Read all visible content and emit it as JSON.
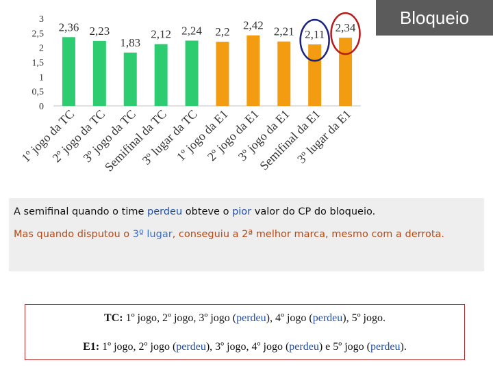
{
  "title": "Bloqueio",
  "chart_data": {
    "type": "bar",
    "categories": [
      "1º jogo da TC",
      "2º jogo da TC",
      "3º jogo da TC",
      "Semifinal da TC",
      "3º lugar da TC",
      "1º jogo da E1",
      "2º jogo da E1",
      "3º jogo da E1",
      "Semifinal da E1",
      "3º lugar da E1"
    ],
    "values": [
      2.36,
      2.23,
      1.83,
      2.12,
      2.24,
      2.2,
      2.42,
      2.21,
      2.11,
      2.34
    ],
    "value_labels": [
      "2,36",
      "2,23",
      "1,83",
      "2,12",
      "2,24",
      "2,2",
      "2,42",
      "2,21",
      "2,11",
      "2,34"
    ],
    "colors": [
      "#2ecc71",
      "#2ecc71",
      "#2ecc71",
      "#2ecc71",
      "#2ecc71",
      "#f39c12",
      "#f39c12",
      "#f39c12",
      "#f39c12",
      "#f39c12"
    ],
    "y_ticks": [
      "3",
      "2,5",
      "2",
      "1,5",
      "1",
      "0,5",
      "0"
    ],
    "ylim": [
      0,
      3
    ],
    "grid": false,
    "circled_bars": [
      {
        "index": 8,
        "color": "#1a237e"
      },
      {
        "index": 9,
        "color": "#b71c1c"
      }
    ]
  },
  "note": {
    "line1_a": "A semifinal quando o time ",
    "line1_perdeu": "perdeu",
    "line1_b": " obteve o ",
    "line1_pior": "pior",
    "line1_c": " valor do CP do bloqueio.",
    "line2_a": "Mas quando disputou o ",
    "line2_3o": "3º",
    "line2_lugar": "lugar",
    "line2_b": ", conseguiu a 2ª melhor marca, mesmo com a derrota."
  },
  "legend": {
    "tc_key": "TC:",
    "tc_a": " 1º jogo, 2º jogo, 3º jogo (",
    "tc_p1": "perdeu",
    "tc_b": "), 4º jogo (",
    "tc_p2": "perdeu",
    "tc_c": "), 5º jogo.",
    "e1_key": "E1:",
    "e1_a": " 1º jogo, 2º jogo (",
    "e1_p1": "perdeu",
    "e1_b": "), 3º jogo, 4º jogo (",
    "e1_p2": "perdeu",
    "e1_c": ") e 5º jogo (",
    "e1_p3": "perdeu",
    "e1_d": ")."
  }
}
